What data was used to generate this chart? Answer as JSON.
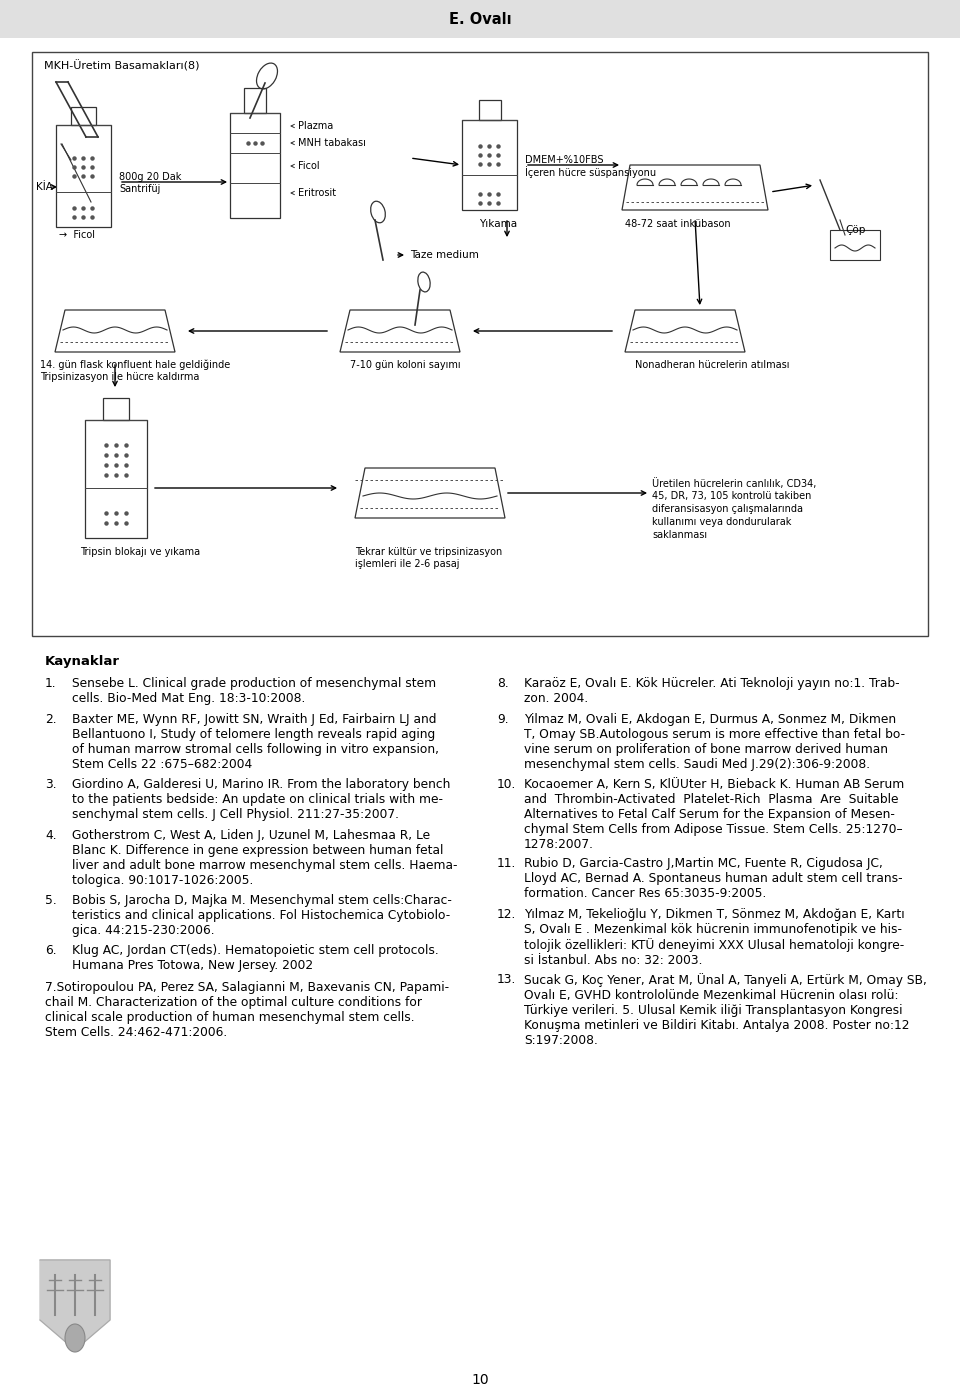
{
  "header_text": "E. Ovalı",
  "header_bg": "#e0e0e0",
  "page_bg": "#ffffff",
  "page_number": "10",
  "figure_title": "MKH-Üretim Basamakları(8)",
  "kaynaklar_title": "Kaynaklar",
  "ref1_num": "1.",
  "ref1_text": "Sensebe L. Clinical grade production of mesenchymal stem\ncells. Bio-Med Mat Eng. 18:3-10:2008.",
  "ref2_num": "2.",
  "ref2_text": "Baxter ME, Wynn RF, Jowitt SN, Wraith J Ed, Fairbairn LJ and\nBellantuono I, Study of telomere length reveals rapid aging\nof human marrow stromal cells following in vitro expansion,\nStem Cells 22 :675–682:2004",
  "ref3_num": "3.",
  "ref3_text": "Giordino A, Galderesi U, Marino IR. From the laboratory bench\nto the patients bedside: An update on clinical trials with me-\nsenchymal stem cells. J Cell Physiol. 211:27-35:2007.",
  "ref4_num": "4.",
  "ref4_text": "Gotherstrom C, West A, Liden J, Uzunel M, Lahesmaa R, Le\nBlanc K. Difference in gene expression between human fetal\nliver and adult bone marrow mesenchymal stem cells. Haema-\ntologica. 90:1017-1026:2005.",
  "ref5_num": "5.",
  "ref5_text": "Bobis S, Jarocha D, Majka M. Mesenchymal stem cells:Charac-\nteristics and clinical applications. Fol Histochemica Cytobiolo-\ngica. 44:215-230:2006.",
  "ref6_num": "6.",
  "ref6_text": "Klug AC, Jordan CT(eds). Hematopoietic stem cell protocols.\nHumana Pres Totowa, New Jersey. 2002",
  "ref7_text": "7.Sotiropoulou PA, Perez SA, Salagianni M, Baxevanis CN, Papami-\nchail M. Characterization of the optimal culture conditions for\nclinical scale production of human mesenchymal stem cells.\nStem Cells. 24:462-471:2006.",
  "ref8_num": "8.",
  "ref8_text": "Karaöz E, Ovalı E. Kök Hücreler. Ati Teknoloji yayın no:1. Trab-\nzon. 2004.",
  "ref9_num": "9.",
  "ref9_text": "Yilmaz M, Ovali E, Akdogan E, Durmus A, Sonmez M, Dikmen\nT, Omay SB.Autologous serum is more effective than fetal bo-\nvine serum on proliferation of bone marrow derived human\nmesenchymal stem cells. Saudi Med J.29(2):306-9:2008.",
  "ref10_num": "10.",
  "ref10_text": "Kocaoemer A, Kern S, KlÜUter H, Bieback K. Human AB Serum\nand  Thrombin-Activated  Platelet-Rich  Plasma  Are  Suitable\nAlternatives to Fetal Calf Serum for the Expansion of Mesen-\nchymal Stem Cells from Adipose Tissue. Stem Cells. 25:1270–\n1278:2007.",
  "ref11_num": "11.",
  "ref11_text": "Rubio D, Garcia-Castro J,Martin MC, Fuente R, Cigudosa JC,\nLloyd AC, Bernad A. Spontaneus human adult stem cell trans-\nformation. Cancer Res 65:3035-9:2005.",
  "ref12_num": "12.",
  "ref12_text": "Yılmaz M, Tekelioğlu Y, Dikmen T, Sönmez M, Akdoğan E, Kartı\nS, Ovalı E . Mezenkimal kök hücrenin immunofenotipik ve his-\ntolojik özellikleri: KTÜ deneyimi XXX Ulusal hematoloji kongre-\nsi İstanbul. Abs no: 32: 2003.",
  "ref13_num": "13.",
  "ref13_text": "Sucak G, Koç Yener, Arat M, Ünal A, Tanyeli A, Ertürk M, Omay SB,\nOvalı E, GVHD kontrololünde Mezenkimal Hücrenin olası rolü:\nTürkiye verileri. 5. Ulusal Kemik iliği Transplantasyon Kongresi\nKonuşma metinleri ve Bildiri Kitabı. Antalya 2008. Poster no:12\nS:197:2008."
}
